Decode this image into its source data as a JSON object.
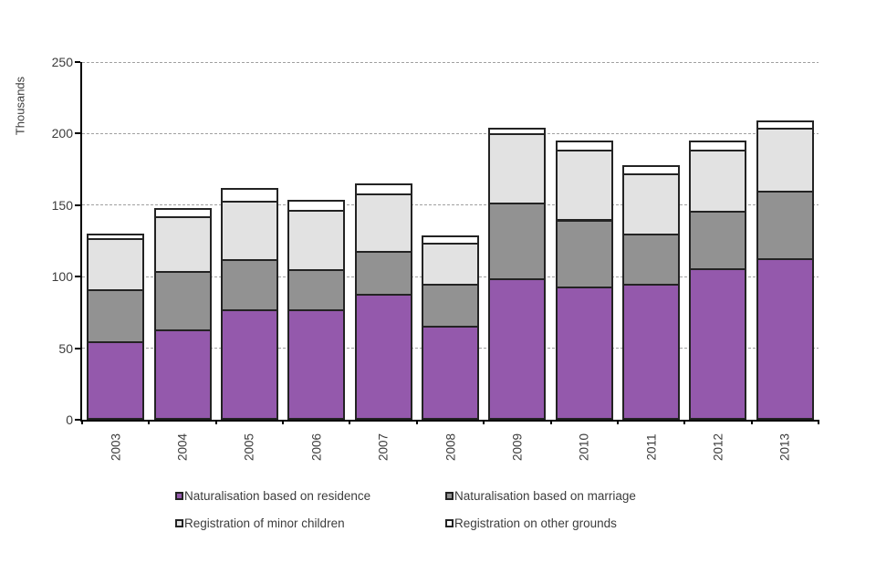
{
  "chart_data": {
    "type": "bar",
    "stacked": true,
    "title": "",
    "ylabel": "Thousands",
    "xlabel": "",
    "categories": [
      "2003",
      "2004",
      "2005",
      "2006",
      "2007",
      "2008",
      "2009",
      "2010",
      "2011",
      "2012",
      "2013"
    ],
    "series": [
      {
        "name": "Naturalisation based on residence",
        "color": "#9459AC",
        "values": [
          55,
          63,
          77,
          77,
          88,
          66,
          99,
          93,
          95,
          106,
          113
        ]
      },
      {
        "name": "Naturalisation based on marriage",
        "color": "#929292",
        "values": [
          36,
          41,
          35,
          28,
          30,
          29,
          53,
          47,
          35,
          40,
          47
        ]
      },
      {
        "name": "Registration of minor children",
        "color": "#E2E2E2",
        "values": [
          36,
          38,
          41,
          42,
          40,
          29,
          48,
          49,
          42,
          43,
          44
        ]
      },
      {
        "name": "Registration on other grounds",
        "color": "#FFFFFF",
        "values": [
          3,
          6,
          9,
          7,
          7,
          5,
          4,
          6,
          6,
          6,
          5
        ]
      }
    ],
    "ylim": [
      0,
      250
    ],
    "yticks": [
      0,
      50,
      100,
      150,
      200,
      250
    ],
    "grid": "horizontal-dashed",
    "legend_position": "bottom-two-columns",
    "colors": {
      "axis": "#000000",
      "text": "#3C3C3C",
      "gridline": "#A0A0A0",
      "bar_border": "#232323",
      "background": "#FFFFFF"
    }
  }
}
